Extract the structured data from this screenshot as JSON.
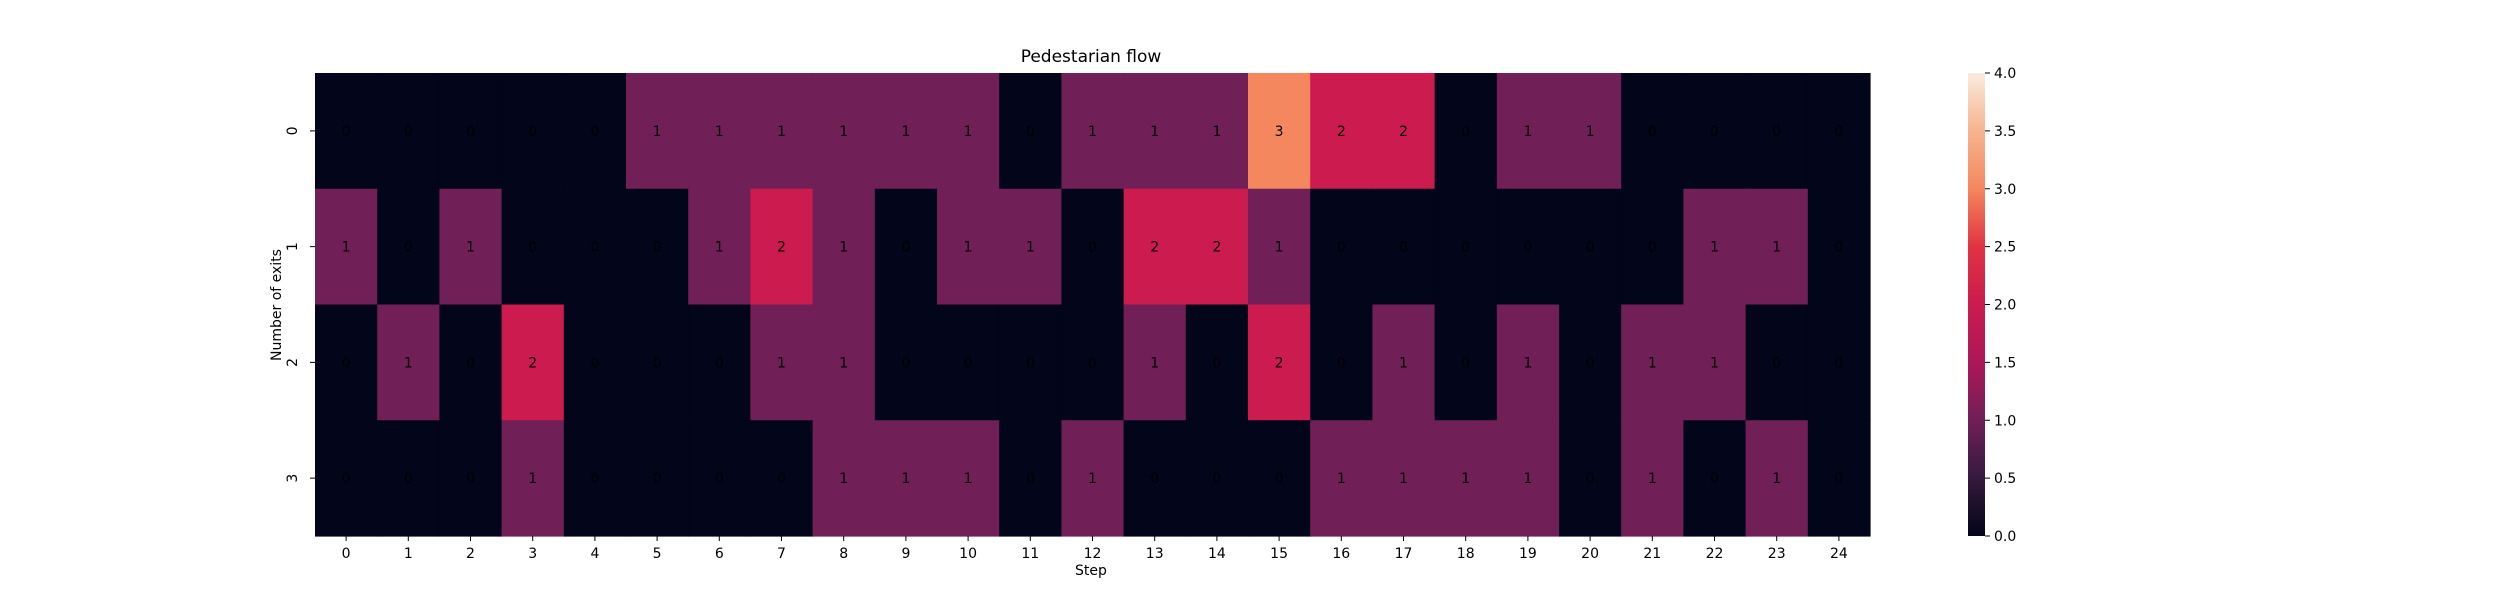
{
  "chart_data": {
    "type": "heatmap",
    "title": "Pedestarian flow",
    "xlabel": "Step",
    "ylabel": "Number of exits",
    "x_categories": [
      "0",
      "1",
      "2",
      "3",
      "4",
      "5",
      "6",
      "7",
      "8",
      "9",
      "10",
      "11",
      "12",
      "13",
      "14",
      "15",
      "16",
      "17",
      "18",
      "19",
      "20",
      "21",
      "22",
      "23",
      "24"
    ],
    "y_categories": [
      "0",
      "1",
      "2",
      "3"
    ],
    "values": [
      [
        0,
        0,
        0,
        0,
        0,
        1,
        1,
        1,
        1,
        1,
        1,
        0,
        1,
        1,
        1,
        3,
        2,
        2,
        0,
        1,
        1,
        0,
        0,
        0,
        0
      ],
      [
        1,
        0,
        1,
        0,
        0,
        0,
        1,
        2,
        1,
        0,
        1,
        1,
        0,
        2,
        2,
        1,
        0,
        0,
        0,
        0,
        0,
        0,
        1,
        1,
        0
      ],
      [
        0,
        1,
        0,
        2,
        0,
        0,
        0,
        1,
        1,
        0,
        0,
        0,
        0,
        1,
        0,
        2,
        0,
        1,
        0,
        1,
        0,
        1,
        1,
        0,
        0
      ],
      [
        0,
        0,
        0,
        1,
        0,
        0,
        0,
        0,
        1,
        1,
        1,
        0,
        1,
        0,
        0,
        0,
        1,
        1,
        1,
        1,
        0,
        1,
        0,
        1,
        0
      ]
    ],
    "annotate": true,
    "colorbar": {
      "min": 0.0,
      "max": 4.0,
      "ticks": [
        "0.0",
        "0.5",
        "1.0",
        "1.5",
        "2.0",
        "2.5",
        "3.0",
        "3.5",
        "4.0"
      ],
      "colormap": "rocket",
      "colors": {
        "v0": "#03051a",
        "v1": "#701f57",
        "v2": "#cb1b4f",
        "v3": "#f4875e",
        "v4": "#faebdd"
      }
    }
  }
}
